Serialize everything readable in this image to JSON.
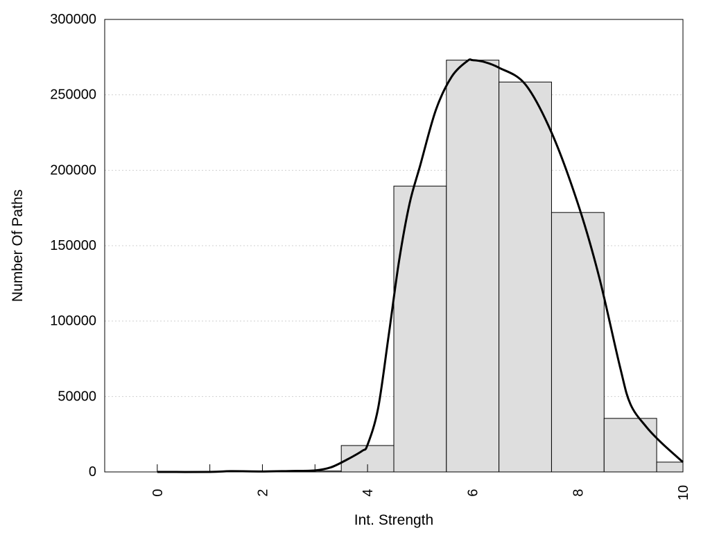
{
  "chart_data": {
    "type": "bar",
    "xlabel": "Int. Strength",
    "ylabel": "Number Of Paths",
    "xlim": [
      -1,
      10
    ],
    "ylim": [
      0,
      300000
    ],
    "x_ticks": [
      0,
      2,
      4,
      6,
      8,
      10
    ],
    "x_tick_labels": [
      "0",
      "2",
      "4",
      "6",
      "8",
      "10"
    ],
    "y_ticks": [
      0,
      50000,
      100000,
      150000,
      200000,
      250000,
      300000
    ],
    "y_tick_labels": [
      "0",
      "50000",
      "100000",
      "150000",
      "200000",
      "250000",
      "300000"
    ],
    "grid": "horizontal dotted",
    "legend": "none",
    "bar_fill": "#dedede",
    "bar_stroke": "#000000",
    "bars": [
      {
        "x": 0,
        "value": 0
      },
      {
        "x": 1,
        "value": 0
      },
      {
        "x": 2,
        "value": 300
      },
      {
        "x": 3,
        "value": 600
      },
      {
        "x": 4,
        "value": 17500
      },
      {
        "x": 5,
        "value": 189500
      },
      {
        "x": 6,
        "value": 273000
      },
      {
        "x": 7,
        "value": 258500
      },
      {
        "x": 8,
        "value": 172000
      },
      {
        "x": 9,
        "value": 35500
      },
      {
        "x": 10,
        "value": 6500
      }
    ],
    "curve": {
      "type": "line",
      "color": "#000000",
      "x": [
        0,
        1,
        1.4,
        2,
        2.5,
        3,
        3.3,
        3.6,
        3.9,
        4.0,
        4.2,
        4.4,
        4.6,
        4.8,
        5.0,
        5.3,
        5.6,
        5.9,
        6.0,
        6.2,
        6.5,
        7.0,
        7.5,
        8.0,
        8.4,
        8.8,
        9.0,
        9.3,
        9.6,
        10.0
      ],
      "y": [
        0,
        0,
        500,
        300,
        600,
        1000,
        3000,
        8000,
        14000,
        18000,
        42000,
        90000,
        140000,
        178000,
        203000,
        240000,
        262000,
        272500,
        273000,
        272000,
        268000,
        257000,
        225000,
        178000,
        130000,
        70000,
        45000,
        30000,
        19000,
        6500
      ]
    }
  }
}
